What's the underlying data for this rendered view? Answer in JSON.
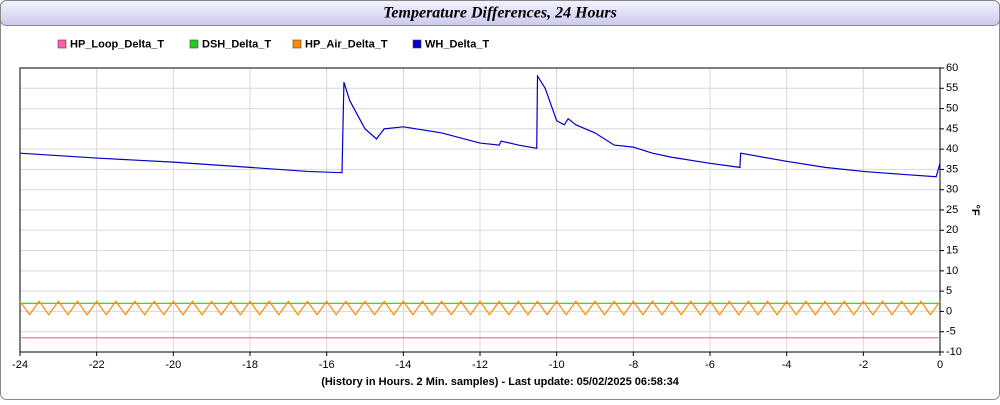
{
  "chart_data": {
    "type": "line",
    "title": "Temperature Differences, 24 Hours",
    "footer": "(History in Hours. 2 Min. samples) - Last update: 05/02/2025 06:58:34",
    "ylabel": "°F",
    "xlim": [
      -24,
      0
    ],
    "xticks": [
      -24,
      -22,
      -20,
      -18,
      -16,
      -14,
      -12,
      -10,
      -8,
      -6,
      -4,
      -2,
      0
    ],
    "ylim": [
      -10,
      60
    ],
    "yticks": [
      -10,
      -5,
      0,
      5,
      10,
      15,
      20,
      25,
      30,
      35,
      40,
      45,
      50,
      55,
      60
    ],
    "grid": true,
    "series": [
      {
        "name": "HP_Loop_Delta_T",
        "color": "#ff5fa8",
        "x": [
          -24,
          0
        ],
        "values": [
          -6.5,
          -6.5
        ]
      },
      {
        "name": "DSH_Delta_T",
        "color": "#22cc22",
        "x": [
          -24,
          0
        ],
        "values": [
          2,
          2
        ]
      },
      {
        "name": "HP_Air_Delta_T",
        "color": "#ff8a00",
        "x": [
          -24,
          -23.75,
          -23.5,
          -23.25,
          -23,
          -22.75,
          -22.5,
          -22.25,
          -22,
          -21.75,
          -21.5,
          -21.25,
          -21,
          -20.75,
          -20.5,
          -20.25,
          -20,
          -19.75,
          -19.5,
          -19.25,
          -19,
          -18.75,
          -18.5,
          -18.25,
          -18,
          -17.75,
          -17.5,
          -17.25,
          -17,
          -16.75,
          -16.5,
          -16.25,
          -16,
          -15.75,
          -15.5,
          -15.25,
          -15,
          -14.75,
          -14.5,
          -14.25,
          -14,
          -13.75,
          -13.5,
          -13.25,
          -13,
          -12.75,
          -12.5,
          -12.25,
          -12,
          -11.75,
          -11.5,
          -11.25,
          -11,
          -10.75,
          -10.5,
          -10.25,
          -10,
          -9.75,
          -9.5,
          -9.25,
          -9,
          -8.75,
          -8.5,
          -8.25,
          -8,
          -7.75,
          -7.5,
          -7.25,
          -7,
          -6.75,
          -6.5,
          -6.25,
          -6,
          -5.75,
          -5.5,
          -5.25,
          -5,
          -4.75,
          -4.5,
          -4.25,
          -4,
          -3.75,
          -3.5,
          -3.25,
          -3,
          -2.75,
          -2.5,
          -2.25,
          -2,
          -1.75,
          -1.5,
          -1.25,
          -1,
          -0.75,
          -0.5,
          -0.25,
          0
        ],
        "values": [
          2.5,
          -0.8,
          2.5,
          -0.8,
          2.5,
          -0.8,
          2.5,
          -0.8,
          2.5,
          -0.8,
          2.5,
          -0.8,
          2.5,
          -0.8,
          2.5,
          -0.8,
          2.5,
          -0.8,
          2.5,
          -0.8,
          2.5,
          -0.8,
          2.5,
          -0.8,
          2.5,
          -0.8,
          2.5,
          -0.8,
          2.5,
          -0.8,
          2.5,
          -0.8,
          2.5,
          -0.8,
          2.5,
          -0.8,
          2.5,
          -0.8,
          2.5,
          -0.8,
          2.5,
          -0.8,
          2.5,
          -0.8,
          2.5,
          -0.8,
          2.5,
          -0.8,
          2.5,
          -0.8,
          2.5,
          -0.8,
          2.5,
          -0.8,
          2.5,
          -0.8,
          2.5,
          -0.8,
          2.5,
          -0.8,
          2.5,
          -0.8,
          2.5,
          -0.8,
          2.5,
          -0.8,
          2.5,
          -0.8,
          2.5,
          -0.8,
          2.5,
          -0.8,
          2.5,
          -0.8,
          2.5,
          -0.8,
          2.5,
          -0.8,
          2.5,
          -0.8,
          2.5,
          -0.8,
          2.5,
          -0.8,
          2.5,
          -0.8,
          2.5,
          -0.8,
          2.5,
          -0.8,
          2.5,
          -0.8,
          2.5,
          -0.8,
          2.5,
          -0.8,
          2.5
        ]
      },
      {
        "name": "WH_Delta_T",
        "color": "#0000cc",
        "x": [
          -24,
          -22,
          -20,
          -18,
          -16.5,
          -15.6,
          -15.55,
          -15.4,
          -15,
          -14.7,
          -14.5,
          -14,
          -13,
          -12,
          -11.5,
          -11.45,
          -11,
          -10.52,
          -10.5,
          -10.3,
          -10,
          -9.8,
          -9.7,
          -9.5,
          -9,
          -8.5,
          -8,
          -7.5,
          -7,
          -6,
          -5.22,
          -5.2,
          -4,
          -3,
          -2,
          -1,
          -0.1,
          0
        ],
        "values": [
          39,
          37.8,
          36.8,
          35.5,
          34.5,
          34.2,
          56.5,
          52,
          45,
          42.5,
          45,
          45.5,
          44,
          41.5,
          41,
          42,
          41,
          40.2,
          58,
          55,
          47,
          46,
          47.5,
          46,
          44,
          41,
          40.5,
          39,
          38,
          36.5,
          35.5,
          39,
          37,
          35.5,
          34.5,
          33.8,
          33.2,
          36.5
        ]
      }
    ]
  }
}
